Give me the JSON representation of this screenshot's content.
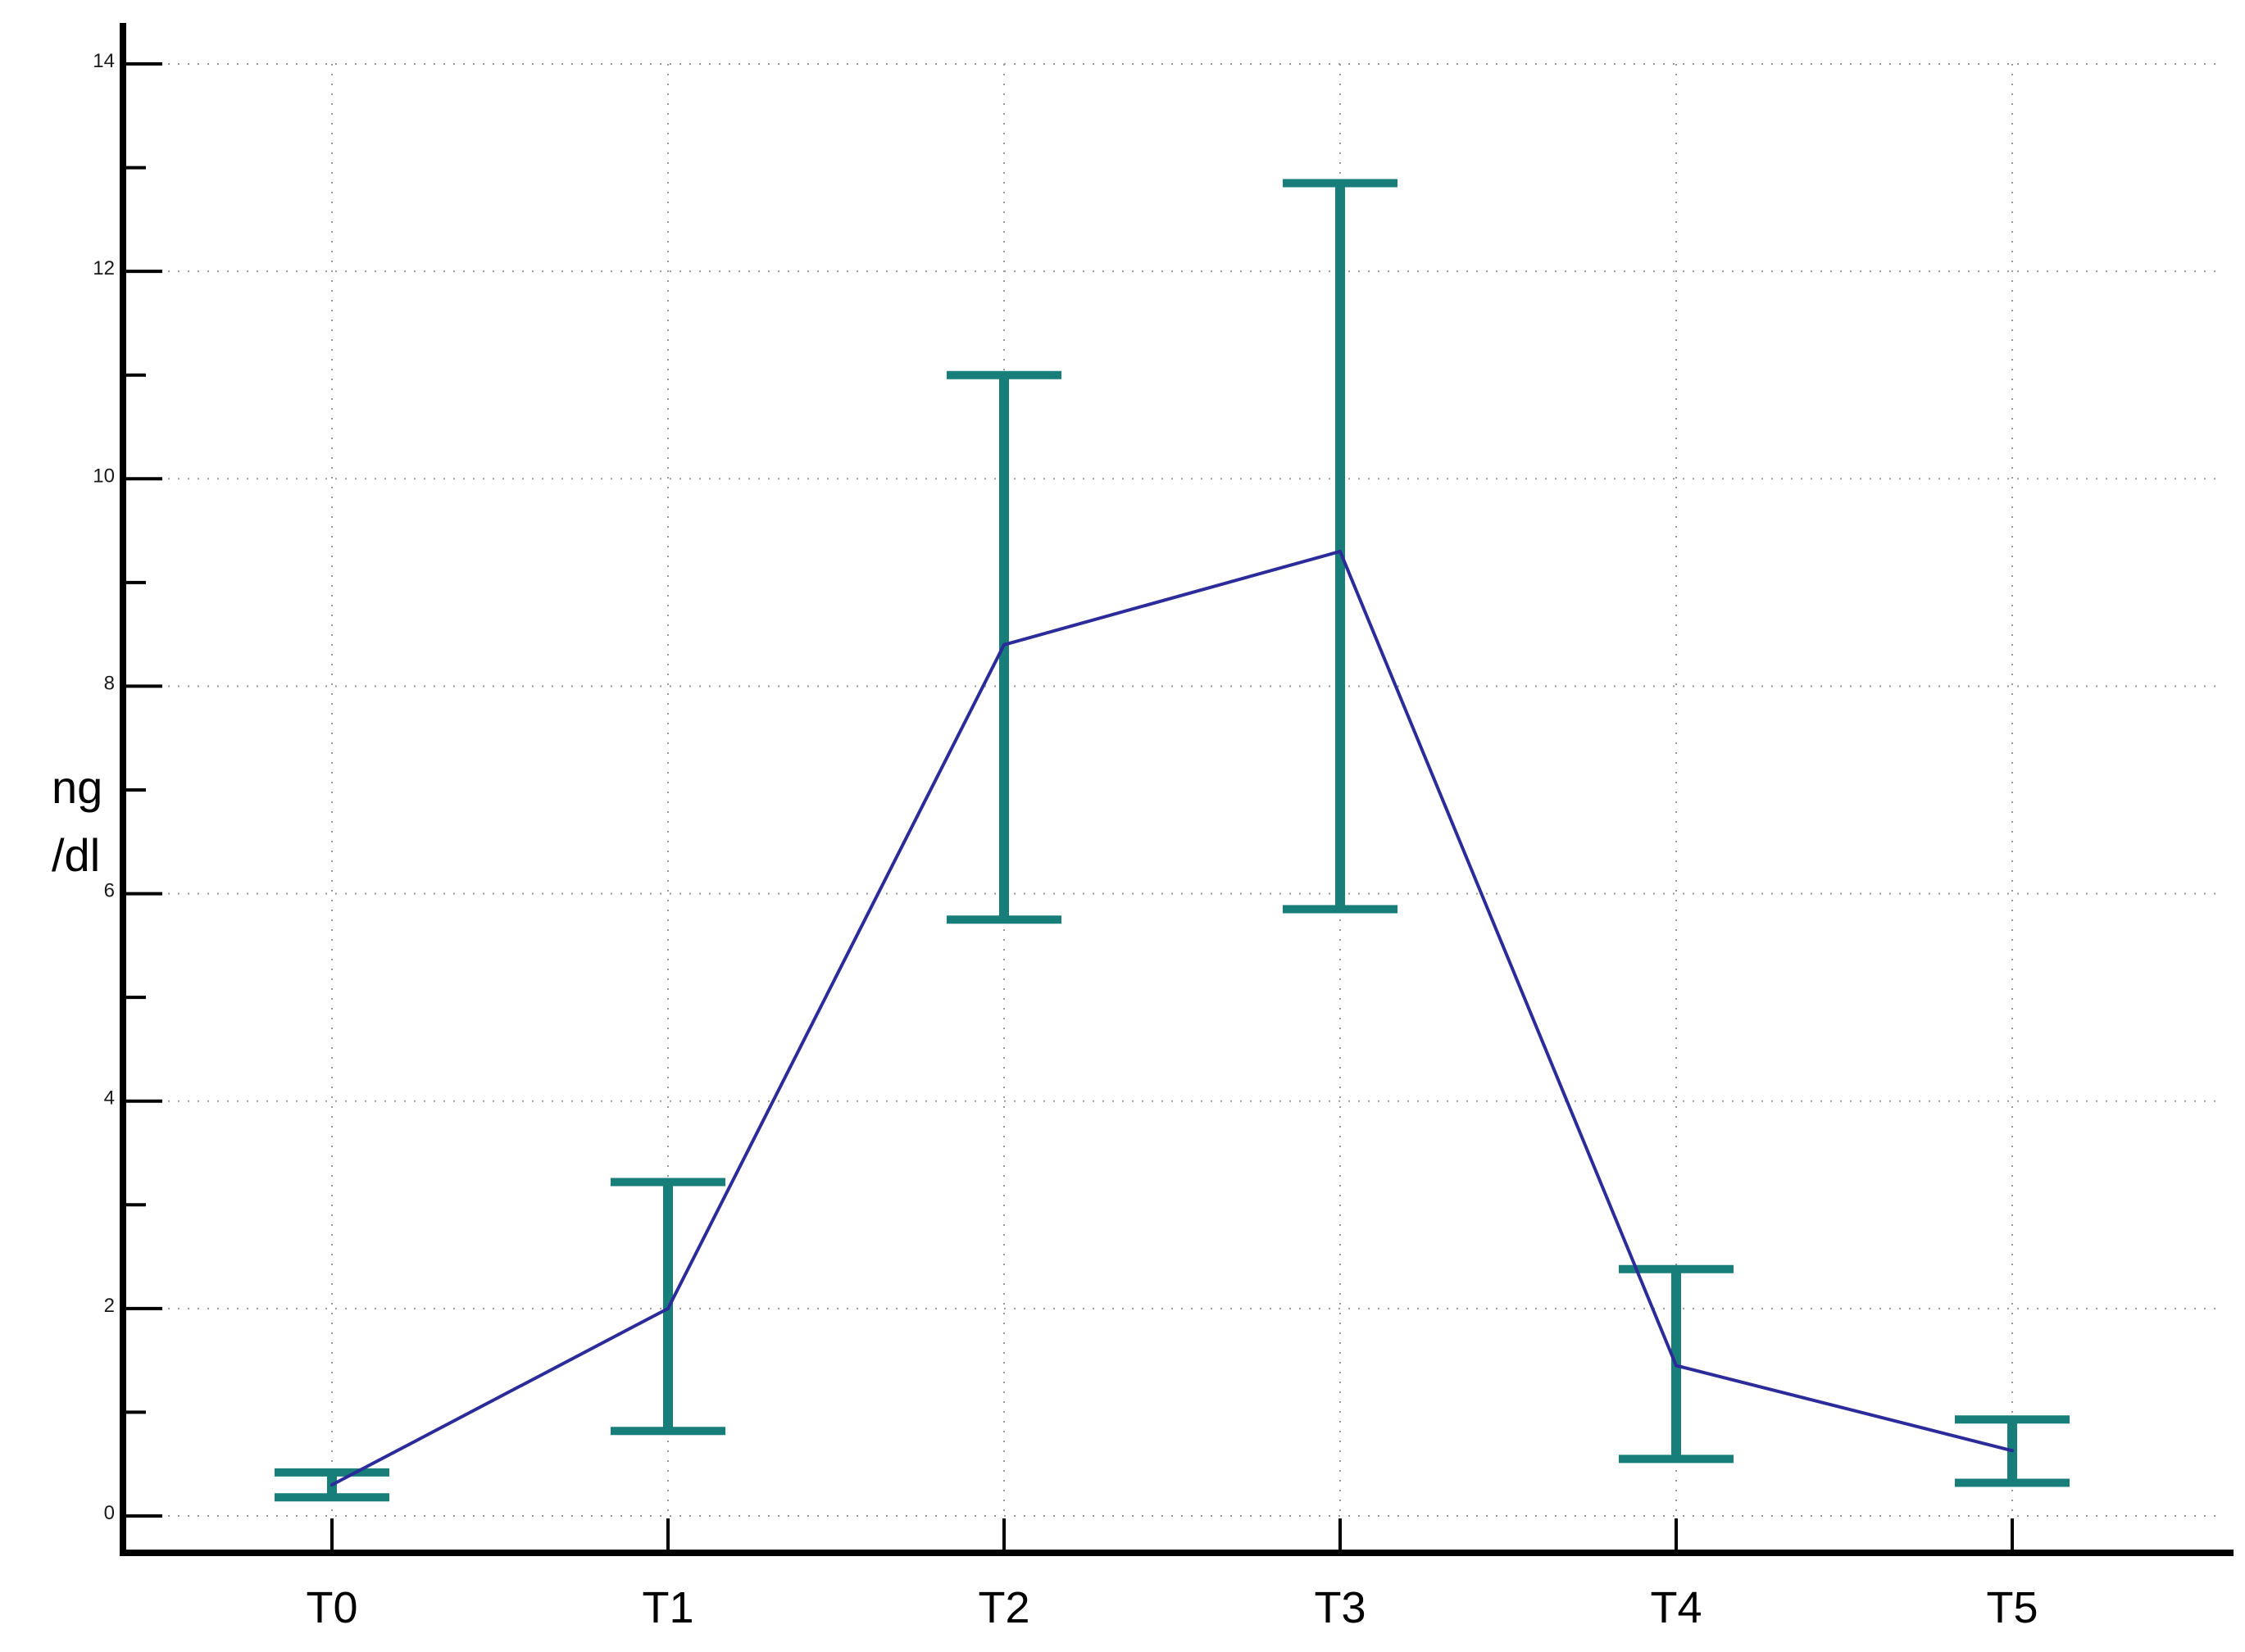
{
  "chart_data": {
    "type": "line",
    "categories": [
      "T0",
      "T1",
      "T2",
      "T3",
      "T4",
      "T5"
    ],
    "series": [
      {
        "values": [
          0.3,
          2.0,
          8.4,
          9.3,
          1.45,
          0.63
        ],
        "error_low": [
          0.18,
          0.82,
          5.75,
          5.85,
          0.55,
          0.32
        ],
        "error_high": [
          0.42,
          3.22,
          11.0,
          12.85,
          2.38,
          0.93
        ],
        "color": "#2b2b9a",
        "error_color": "#177e7a"
      }
    ],
    "ylabel_line1": "ng",
    "ylabel_line2": "/dl",
    "ylim": [
      0,
      14
    ],
    "yticks": [
      "0",
      "2",
      "4",
      "6",
      "8",
      "10",
      "12",
      "14"
    ],
    "grid": true,
    "axis_color": "#000000",
    "grid_color": "#9a9a9a"
  }
}
